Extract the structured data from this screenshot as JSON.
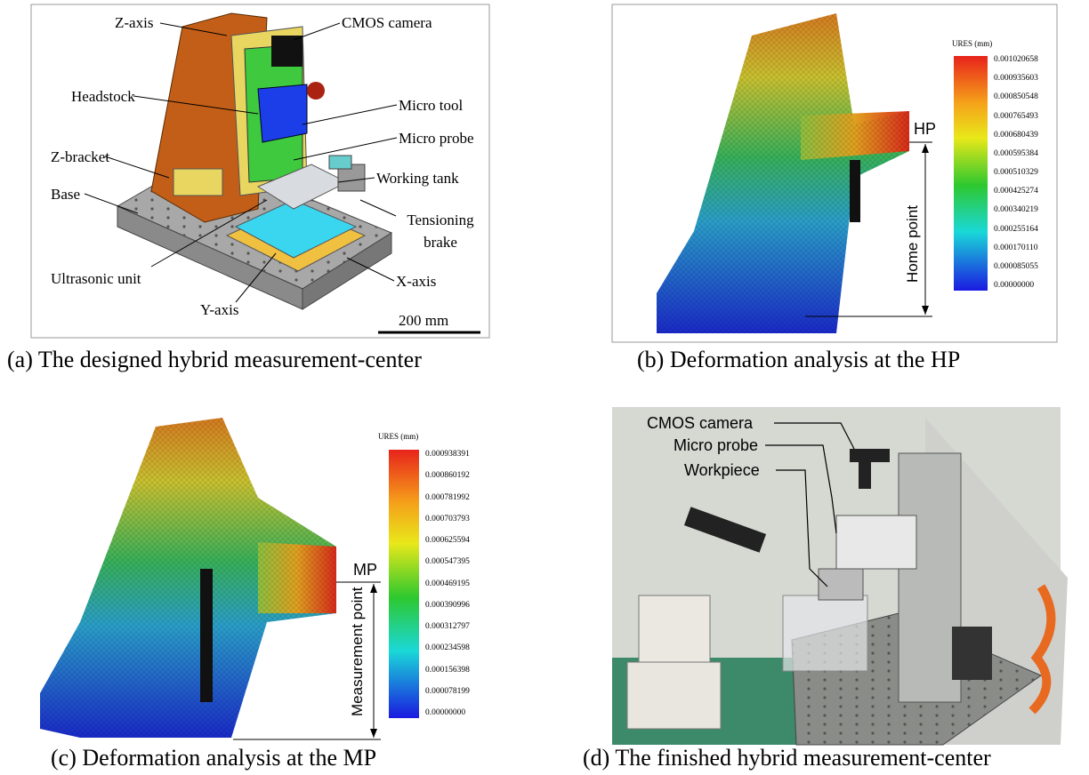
{
  "panels": [
    {
      "caption": "(a) The designed hybrid measurement-center",
      "labels": [
        "Z-axis",
        "CMOS camera",
        "Headstock",
        "Micro tool",
        "Micro probe",
        "Z-bracket",
        "Working tank",
        "Base",
        "Tensioning brake",
        "Ultrasonic unit",
        "X-axis",
        "Y-axis"
      ],
      "scale_bar": "200 mm"
    },
    {
      "caption": "(b) Deformation analysis at the HP",
      "legend_title": "URES (mm)",
      "legend_values": [
        "0.001020658",
        "0.000935603",
        "0.000850548",
        "0.000765493",
        "0.000680439",
        "0.000595384",
        "0.000510329",
        "0.000425274",
        "0.000340219",
        "0.000255164",
        "0.000170110",
        "0.000085055",
        "0.00000000"
      ],
      "point_label": "HP",
      "dimension_label": "Home point"
    },
    {
      "caption": "(c) Deformation analysis at the MP",
      "legend_title": "URES (mm)",
      "legend_values": [
        "0.000938391",
        "0.000860192",
        "0.000781992",
        "0.000703793",
        "0.000625594",
        "0.000547395",
        "0.000469195",
        "0.000390996",
        "0.000312797",
        "0.000234598",
        "0.000156398",
        "0.000078199",
        "0.00000000"
      ],
      "point_label": "MP",
      "dimension_label": "Measurement point"
    },
    {
      "caption": "(d) The finished hybrid measurement-center",
      "labels": [
        "CMOS camera",
        "Micro probe",
        "Workpiece"
      ]
    }
  ]
}
